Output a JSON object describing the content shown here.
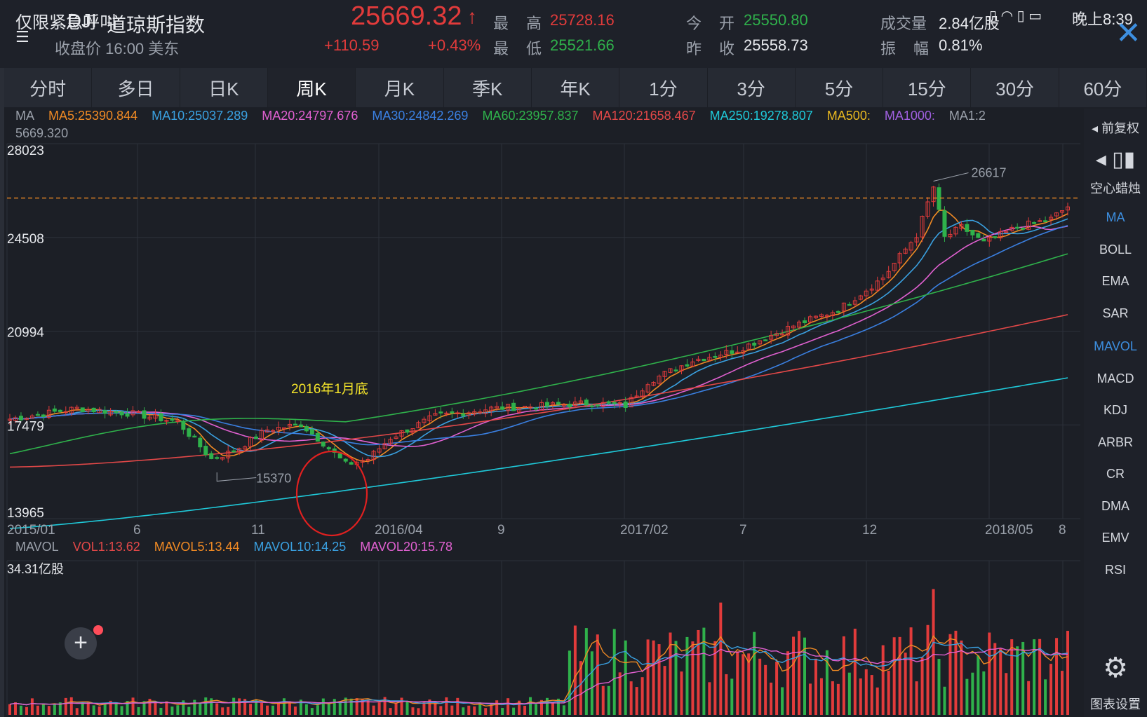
{
  "status_bar": {
    "left_notice": "仅限紧急呼叫",
    "time": "晚上8:39"
  },
  "header": {
    "code": ".DJI",
    "name": "道琼斯指数",
    "subtitle": "收盘价 16:00 美东",
    "price": "25669.32",
    "price_arrow": "↑",
    "change": "+110.59",
    "change_pct": "+0.43%",
    "high_label_1": "最",
    "high_label_2": "高",
    "high": "25728.16",
    "low_label_1": "最",
    "low_label_2": "低",
    "low": "25521.66",
    "open_label_1": "今",
    "open_label_2": "开",
    "open": "25550.80",
    "prev_label_1": "昨",
    "prev_label_2": "收",
    "prev_close": "25558.73",
    "volume_label": "成交量",
    "volume": "2.84亿股",
    "amp_label_1": "振",
    "amp_label_2": "幅",
    "amplitude": "0.81%"
  },
  "tabs": [
    "分时",
    "多日",
    "日K",
    "周K",
    "月K",
    "季K",
    "年K",
    "1分",
    "3分",
    "5分",
    "15分",
    "30分",
    "60分"
  ],
  "active_tab": "周K",
  "ma_legend": {
    "prefix": "MA",
    "items": [
      {
        "label": "MA5:25390.844",
        "color": "#f08a24"
      },
      {
        "label": "MA10:25037.289",
        "color": "#3aa0e0"
      },
      {
        "label": "MA20:24797.676",
        "color": "#e060d0"
      },
      {
        "label": "MA30:24842.269",
        "color": "#3a7fe0"
      },
      {
        "label": "MA60:23957.837",
        "color": "#2fb14b"
      },
      {
        "label": "MA120:21658.467",
        "color": "#e24848"
      },
      {
        "label": "MA250:19278.807",
        "color": "#1fc8d8"
      },
      {
        "label": "MA500:",
        "color": "#e8b820"
      },
      {
        "label": "MA1000:",
        "color": "#a060e0"
      },
      {
        "label": "MA1:2",
        "color": "#9aa0aa"
      }
    ],
    "overflow_value": "5669.320"
  },
  "price_axis": [
    "28023",
    "24508",
    "20994",
    "17479",
    "13965"
  ],
  "time_axis": [
    "2015/01",
    "6",
    "11",
    "2016/04",
    "9",
    "2017/02",
    "7",
    "12",
    "2018/05",
    "8"
  ],
  "annotations": {
    "high_marker": "26617",
    "low_marker": "15370",
    "note": "2016年1月底"
  },
  "volume_legend": {
    "prefix": "MAVOL",
    "items": [
      {
        "label": "VOL1:13.62",
        "color": "#e24848"
      },
      {
        "label": "MAVOL5:13.44",
        "color": "#f08a24"
      },
      {
        "label": "MAVOL10:14.25",
        "color": "#3aa0e0"
      },
      {
        "label": "MAVOL20:15.78",
        "color": "#e060d0"
      }
    ],
    "max_label": "34.31亿股"
  },
  "sidebar": {
    "restore": "前复权",
    "candle_style": "空心蜡烛",
    "indicators": [
      "MA",
      "BOLL",
      "EMA",
      "SAR",
      "MAVOL",
      "MACD",
      "KDJ",
      "ARBR",
      "CR",
      "DMA",
      "EMV",
      "RSI"
    ],
    "active_indicators": [
      "MA",
      "MAVOL"
    ],
    "settings": "图表设置"
  },
  "colors": {
    "up": "#e23b3b",
    "down": "#2fb14b",
    "background": "#1c1f26",
    "grid": "#2c303a",
    "dashed_price": "#f08a24",
    "circle": "#e02020",
    "note_text": "#f5e52a"
  },
  "chart_data": {
    "type": "candlestick",
    "title": "",
    "x_range": [
      "2015/01",
      "2018/08"
    ],
    "ylim": [
      13965,
      28023
    ],
    "last_close": 25669.32,
    "period_high": 26617,
    "period_low": 15370,
    "ma_lines_last": {
      "MA5": 25390.844,
      "MA10": 25037.289,
      "MA20": 24797.676,
      "MA30": 24842.269,
      "MA60": 23957.837,
      "MA120": 21658.467,
      "MA250": 19278.807
    },
    "volume_unit": "亿股",
    "volume_max": 34.31,
    "volume_last": {
      "VOL1": 13.62,
      "MAVOL5": 13.44,
      "MAVOL10": 14.25,
      "MAVOL20": 15.78
    }
  }
}
